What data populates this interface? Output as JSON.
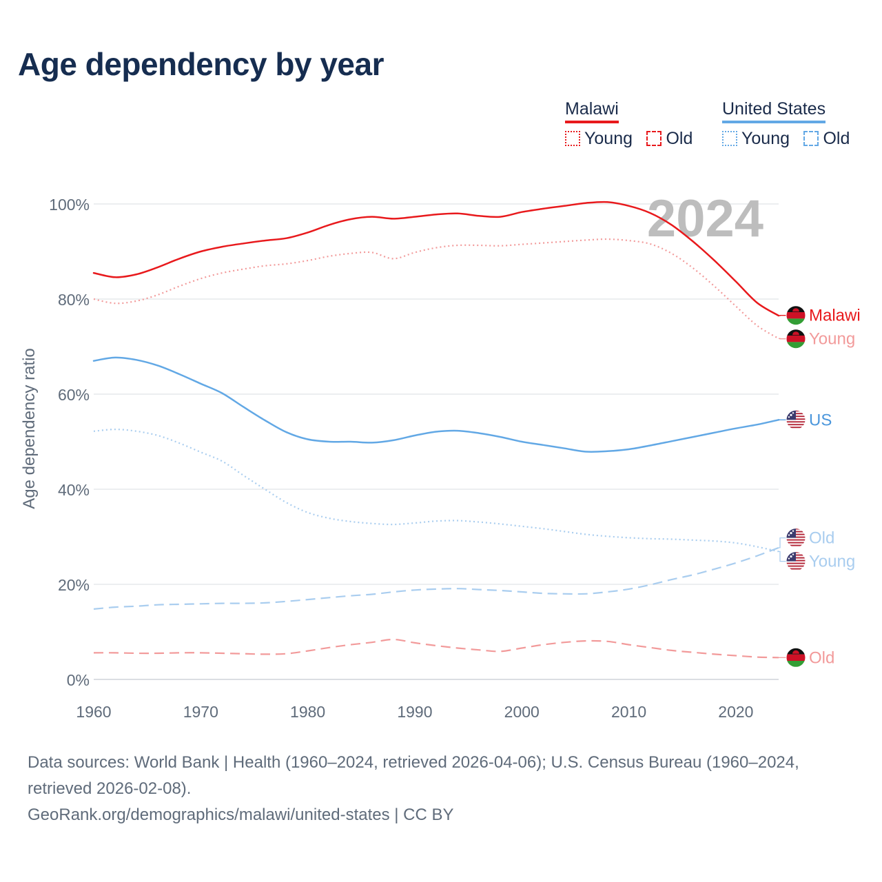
{
  "title": "Age dependency by year",
  "legend": {
    "groups": [
      {
        "name": "Malawi",
        "color": "#e8191c",
        "items": [
          "Young",
          "Old"
        ]
      },
      {
        "name": "United States",
        "color": "#62a8e5",
        "items": [
          "Young",
          "Old"
        ]
      }
    ]
  },
  "year_watermark": "2024",
  "chart_data": {
    "type": "line",
    "title": "Age dependency by year",
    "xlabel": "",
    "ylabel": "Age dependency ratio",
    "xlim": [
      1960,
      2024
    ],
    "ylim": [
      0,
      100
    ],
    "x_ticks": [
      "1960",
      "1970",
      "1980",
      "1990",
      "2000",
      "2010",
      "2020"
    ],
    "y_ticks": [
      "0%",
      "20%",
      "40%",
      "60%",
      "80%",
      "100%"
    ],
    "x": [
      1960,
      1962,
      1964,
      1966,
      1968,
      1970,
      1972,
      1974,
      1976,
      1978,
      1980,
      1982,
      1984,
      1986,
      1988,
      1990,
      1992,
      1994,
      1996,
      1998,
      2000,
      2002,
      2004,
      2006,
      2008,
      2010,
      2012,
      2014,
      2016,
      2018,
      2020,
      2022,
      2024
    ],
    "series": [
      {
        "name": "Malawi",
        "country": "Malawi",
        "label": "Malawi",
        "style": "solid",
        "color": "#e8191c",
        "values": [
          85.5,
          84.6,
          85.2,
          86.7,
          88.5,
          90.0,
          91.0,
          91.7,
          92.3,
          92.8,
          94.0,
          95.6,
          96.8,
          97.3,
          96.9,
          97.3,
          97.8,
          98.0,
          97.5,
          97.3,
          98.3,
          99.0,
          99.6,
          100.2,
          100.4,
          99.6,
          98.1,
          95.6,
          92.1,
          88.1,
          83.7,
          79.2,
          76.5
        ]
      },
      {
        "name": "Malawi Young",
        "country": "Malawi",
        "label": "Young",
        "style": "dotted",
        "color": "#f29a9a",
        "values": [
          80.0,
          79.1,
          79.6,
          80.9,
          82.7,
          84.3,
          85.5,
          86.3,
          87.0,
          87.4,
          88.1,
          89.0,
          89.6,
          89.8,
          88.5,
          89.8,
          90.8,
          91.3,
          91.3,
          91.2,
          91.5,
          91.8,
          92.1,
          92.4,
          92.6,
          92.3,
          91.6,
          89.6,
          86.5,
          82.7,
          78.5,
          74.4,
          71.7
        ]
      },
      {
        "name": "Malawi Old",
        "country": "Malawi",
        "label": "Old",
        "style": "dashed",
        "color": "#f29a9a",
        "values": [
          5.6,
          5.6,
          5.5,
          5.5,
          5.6,
          5.6,
          5.5,
          5.4,
          5.3,
          5.4,
          6.0,
          6.7,
          7.3,
          7.8,
          8.4,
          7.7,
          7.1,
          6.6,
          6.2,
          5.9,
          6.6,
          7.3,
          7.8,
          8.1,
          8.0,
          7.3,
          6.7,
          6.1,
          5.7,
          5.3,
          5.0,
          4.7,
          4.6
        ]
      },
      {
        "name": "US",
        "country": "United States",
        "label": "US",
        "style": "solid",
        "color": "#62a8e5",
        "values": [
          67.0,
          67.7,
          67.2,
          66.0,
          64.2,
          62.2,
          60.2,
          57.3,
          54.5,
          52.0,
          50.5,
          50.0,
          50.0,
          49.8,
          50.3,
          51.3,
          52.1,
          52.3,
          51.8,
          51.0,
          50.0,
          49.3,
          48.6,
          47.9,
          48.0,
          48.4,
          49.2,
          50.1,
          51.0,
          51.9,
          52.8,
          53.6,
          54.6
        ]
      },
      {
        "name": "US Old",
        "country": "United States",
        "label": "Old",
        "style": "dashed",
        "color": "#a9cdef",
        "values": [
          14.8,
          15.2,
          15.4,
          15.7,
          15.8,
          15.9,
          16.0,
          16.0,
          16.1,
          16.4,
          16.8,
          17.2,
          17.6,
          17.9,
          18.4,
          18.8,
          19.0,
          19.1,
          18.9,
          18.7,
          18.4,
          18.1,
          18.0,
          18.0,
          18.4,
          19.0,
          19.9,
          21.0,
          22.0,
          23.2,
          24.5,
          26.0,
          27.7
        ]
      },
      {
        "name": "US Young",
        "country": "United States",
        "label": "Young",
        "style": "dotted",
        "color": "#a9cdef",
        "values": [
          52.2,
          52.6,
          52.2,
          51.3,
          49.7,
          47.8,
          45.9,
          42.9,
          40.0,
          37.2,
          35.1,
          33.9,
          33.2,
          32.8,
          32.6,
          32.9,
          33.3,
          33.4,
          33.1,
          32.7,
          32.2,
          31.7,
          31.1,
          30.5,
          30.1,
          29.8,
          29.6,
          29.5,
          29.3,
          29.1,
          28.7,
          27.9,
          26.9
        ]
      }
    ],
    "end_labels": [
      {
        "series": "Malawi",
        "text": "Malawi",
        "color": "#e8191c",
        "flag": "malawi"
      },
      {
        "series": "Malawi Young",
        "text": "Young",
        "color": "#f29a9a",
        "flag": "malawi"
      },
      {
        "series": "US",
        "text": "US",
        "color": "#4c97dc",
        "flag": "usa"
      },
      {
        "series": "US Old",
        "text": "Old",
        "color": "#a9cdef",
        "flag": "usa"
      },
      {
        "series": "US Young",
        "text": "Young",
        "color": "#a9cdef",
        "flag": "usa"
      },
      {
        "series": "Malawi Old",
        "text": "Old",
        "color": "#f29a9a",
        "flag": "malawi"
      }
    ]
  },
  "source": {
    "line1": "Data sources: World Bank | Health (1960–2024, retrieved 2026-04-06); U.S. Census Bureau (1960–2024, retrieved 2026-02-08).",
    "line2": "GeoRank.org/demographics/malawi/united-states | CC BY"
  }
}
